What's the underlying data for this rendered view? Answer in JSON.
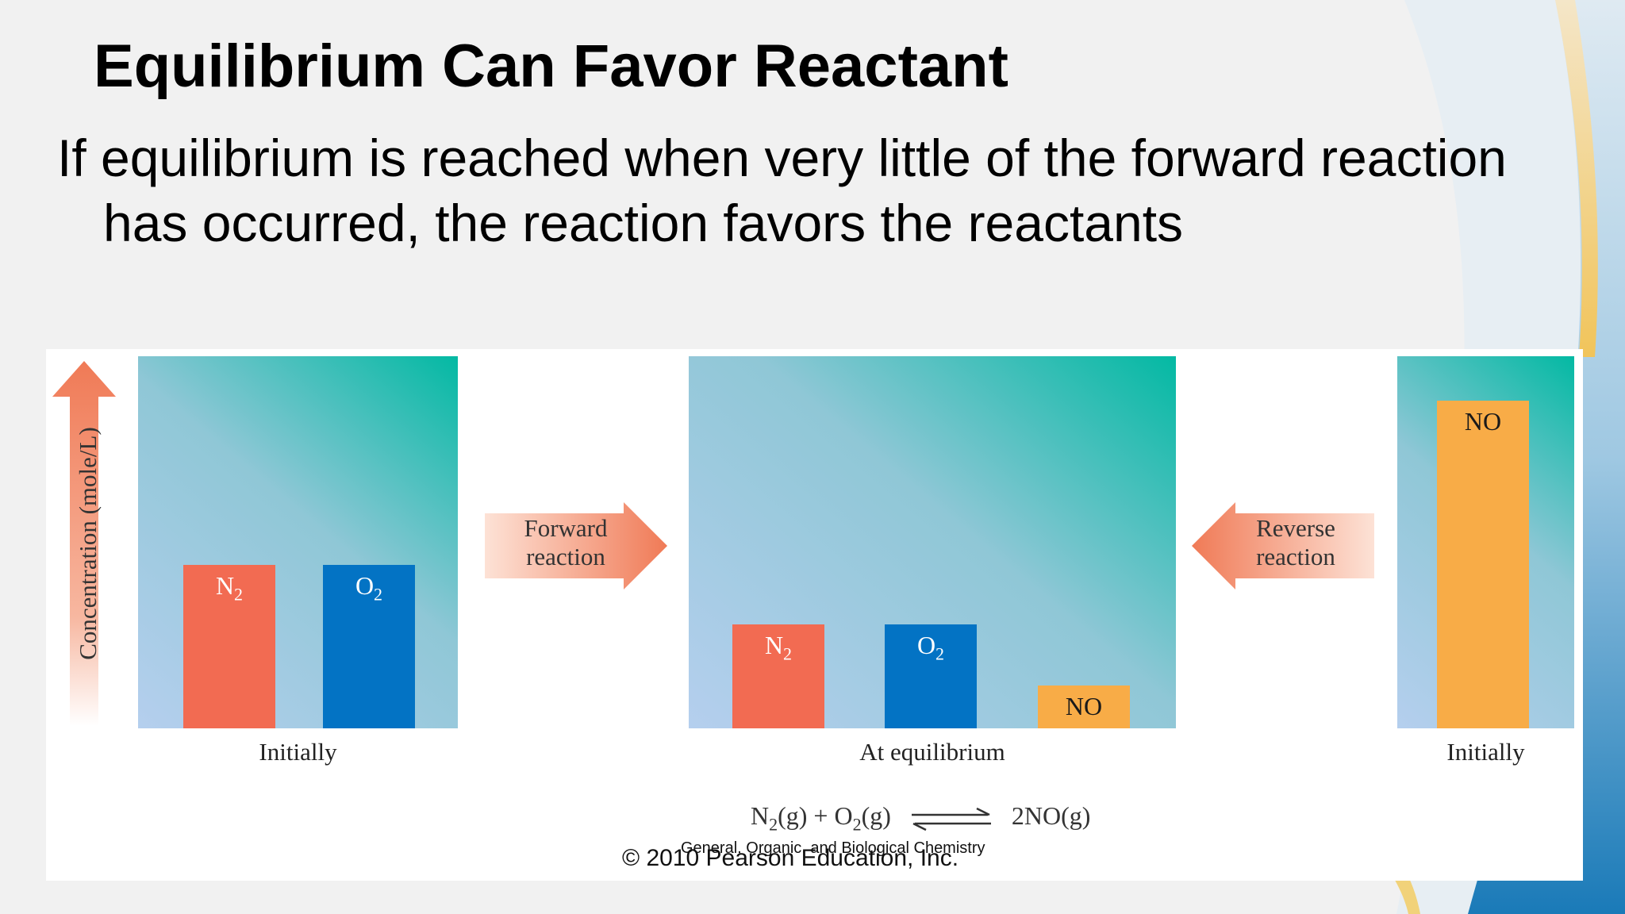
{
  "slide": {
    "title": "Equilibrium Can Favor Reactant",
    "body_line1": "If equilibrium is reached when very little of the forward reaction",
    "body_line2": "has occurred, the reaction favors the reactants"
  },
  "figure": {
    "y_axis_label": "Concentration (mole/L)",
    "forward_line1": "Forward",
    "forward_line2": "reaction",
    "reverse_line1": "Reverse",
    "reverse_line2": "reaction",
    "panels": [
      {
        "caption": "Initially",
        "bars": [
          {
            "label": "N",
            "sub": "2",
            "value": 0.44
          },
          {
            "label": "O",
            "sub": "2",
            "value": 0.44
          }
        ]
      },
      {
        "caption": "At equilibrium",
        "bars": [
          {
            "label": "N",
            "sub": "2",
            "value": 0.28
          },
          {
            "label": "O",
            "sub": "2",
            "value": 0.28
          },
          {
            "label": "NO",
            "sub": "",
            "value": 0.115
          }
        ]
      },
      {
        "caption": "Initially",
        "bars": [
          {
            "label": "NO",
            "sub": "",
            "value": 0.88
          }
        ]
      }
    ],
    "equation": {
      "r1": "N",
      "r1_sub": "2",
      "r1_state": "(g)",
      "plus": "+",
      "r2": "O",
      "r2_sub": "2",
      "r2_state": "(g)",
      "product": "2NO(g)"
    },
    "copyright": "© 2010 Pearson Education, Inc.",
    "footer": "General, Organic, and Biological Chemistry"
  },
  "colors": {
    "n2": "#f26b52",
    "o2": "#0373c4",
    "no": "#f8ac47",
    "arrow": "#f08a6a"
  }
}
